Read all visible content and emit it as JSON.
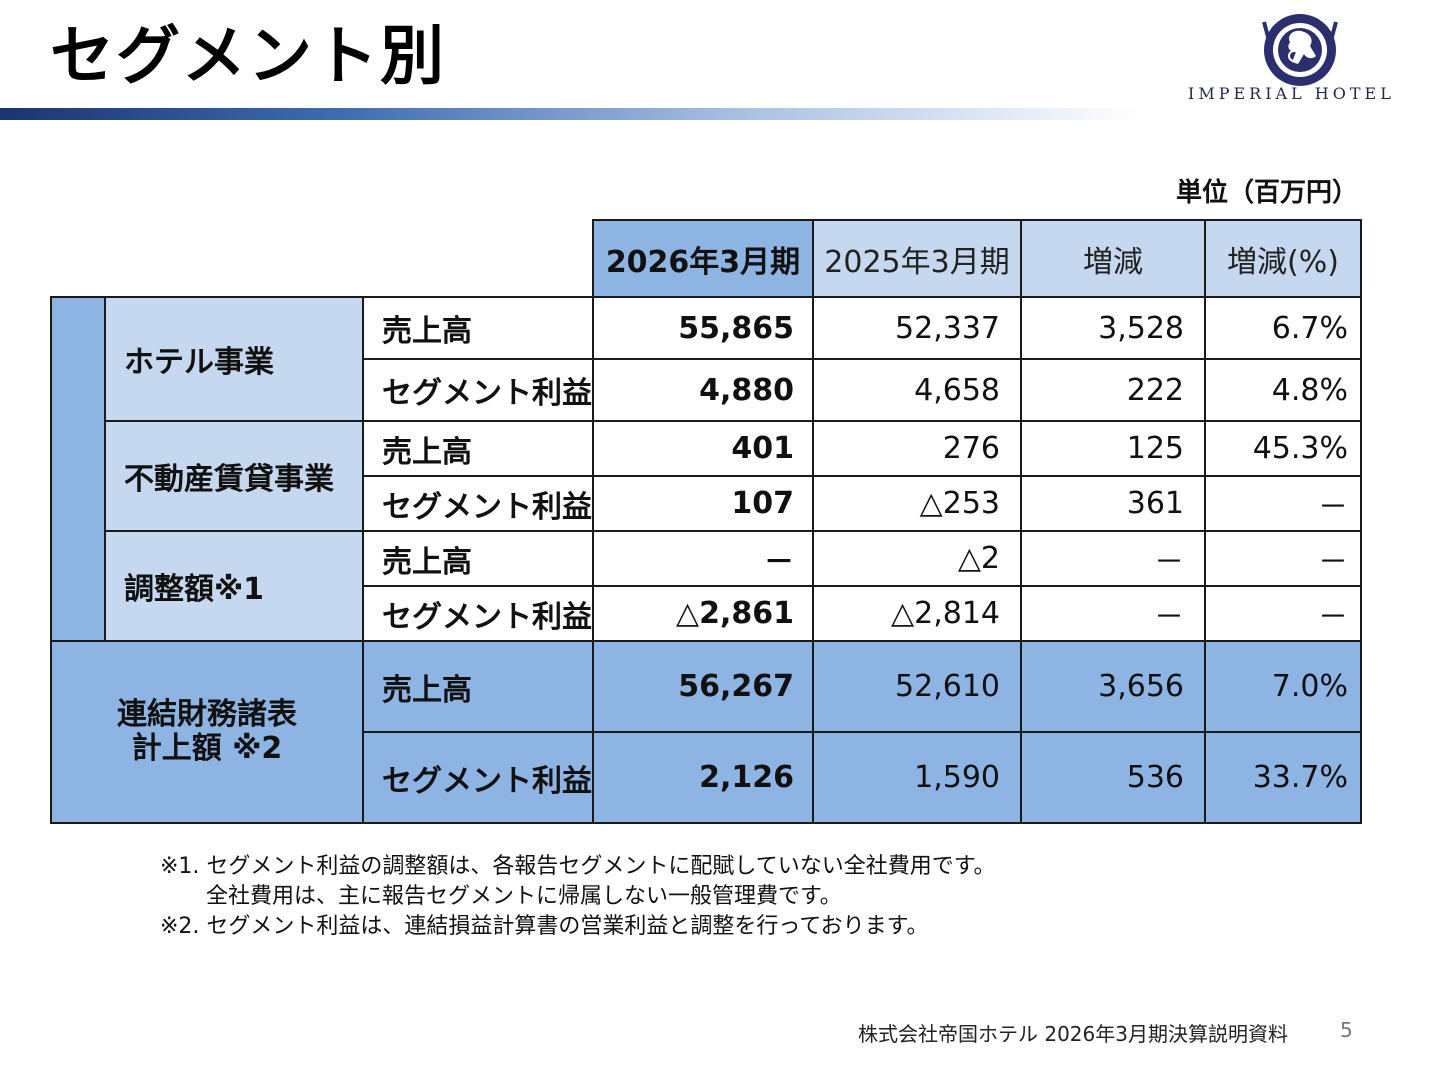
{
  "title": "セグメント別",
  "logo": {
    "brand_text": "IMPERIAL HOTEL",
    "emblem_icon": "lion-crest-icon",
    "emblem_ring_text": "IMPERIAL HOTEL"
  },
  "unit": "単位（百万円）",
  "table": {
    "headers": [
      "2026年3月期",
      "2025年3月期",
      "増減",
      "増減(%)"
    ],
    "segments": [
      {
        "name": "ホテル事業",
        "rows": [
          {
            "metric": "売上高",
            "values": [
              "55,865",
              "52,337",
              "3,528",
              "6.7%"
            ]
          },
          {
            "metric": "セグメント利益",
            "values": [
              "4,880",
              "4,658",
              "222",
              "4.8%"
            ]
          }
        ]
      },
      {
        "name": "不動産賃貸事業",
        "rows": [
          {
            "metric": "売上高",
            "values": [
              "401",
              "276",
              "125",
              "45.3%"
            ]
          },
          {
            "metric": "セグメント利益",
            "values": [
              "107",
              "△253",
              "361",
              "－"
            ]
          }
        ]
      },
      {
        "name": "調整額※1",
        "rows": [
          {
            "metric": "売上高",
            "values": [
              "－",
              "△2",
              "－",
              "－"
            ]
          },
          {
            "metric": "セグメント利益",
            "values": [
              "△2,861",
              "△2,814",
              "－",
              "－"
            ]
          }
        ]
      }
    ],
    "total": {
      "label_line1": "連結財務諸表",
      "label_line2": "計上額 ※2",
      "rows": [
        {
          "metric": "売上高",
          "values": [
            "56,267",
            "52,610",
            "3,656",
            "7.0%"
          ]
        },
        {
          "metric": "セグメント利益",
          "values": [
            "2,126",
            "1,590",
            "536",
            "33.7%"
          ]
        }
      ]
    }
  },
  "notes": [
    "※1. セグメント利益の調整額は、各報告セグメントに配賦していない全社費用です。",
    "全社費用は、主に報告セグメントに帰属しない一般管理費です。",
    "※2. セグメント利益は、連結損益計算書の営業利益と調整を行っております。"
  ],
  "footer": "株式会社帝国ホテル 2026年3月期決算説明資料",
  "page_number": "5"
}
